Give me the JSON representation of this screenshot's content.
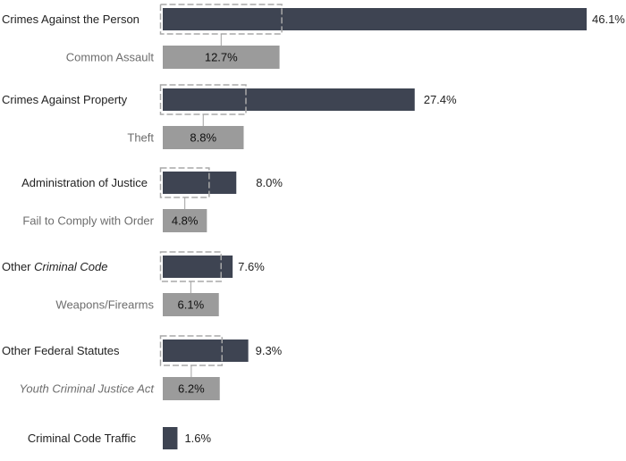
{
  "chart_data": {
    "type": "bar",
    "orientation": "horizontal",
    "title": "",
    "xlabel": "",
    "ylabel": "",
    "value_suffix": "%",
    "xlim": [
      0,
      46.1
    ],
    "grid": false,
    "legend": "none",
    "colors": {
      "main_bar": "#3e4452",
      "sub_bar": "#9b9b9b",
      "dashed_outline": "#a8a8a8",
      "connector": "#a0a0a0"
    },
    "groups": [
      {
        "category": "Crimes Against the Person",
        "value": 46.1,
        "value_label": "46.1%",
        "subcategory": "Common Assault",
        "sub_value": 12.7,
        "sub_value_label": "12.7%",
        "sub_italic": false
      },
      {
        "category": "Crimes Against Property",
        "value": 27.4,
        "value_label": "27.4%",
        "subcategory": "Theft",
        "sub_value": 8.8,
        "sub_value_label": "8.8%",
        "sub_italic": false
      },
      {
        "category": "Administration of Justice",
        "value": 8.0,
        "value_label": "8.0%",
        "subcategory": "Fail to Comply with Order",
        "sub_value": 4.8,
        "sub_value_label": "4.8%",
        "sub_italic": false
      },
      {
        "category_prefix": "Other ",
        "category_italic_part": "Criminal Code",
        "value": 7.6,
        "value_label": "7.6%",
        "subcategory": "Weapons/Firearms",
        "sub_value": 6.1,
        "sub_value_label": "6.1%",
        "sub_italic": false
      },
      {
        "category": "Other Federal Statutes",
        "value": 9.3,
        "value_label": "9.3%",
        "subcategory": "Youth Criminal Justice Act",
        "sub_value": 6.2,
        "sub_value_label": "6.2%",
        "sub_italic": true
      },
      {
        "category": "Criminal Code Traffic",
        "value": 1.6,
        "value_label": "1.6%"
      }
    ]
  }
}
